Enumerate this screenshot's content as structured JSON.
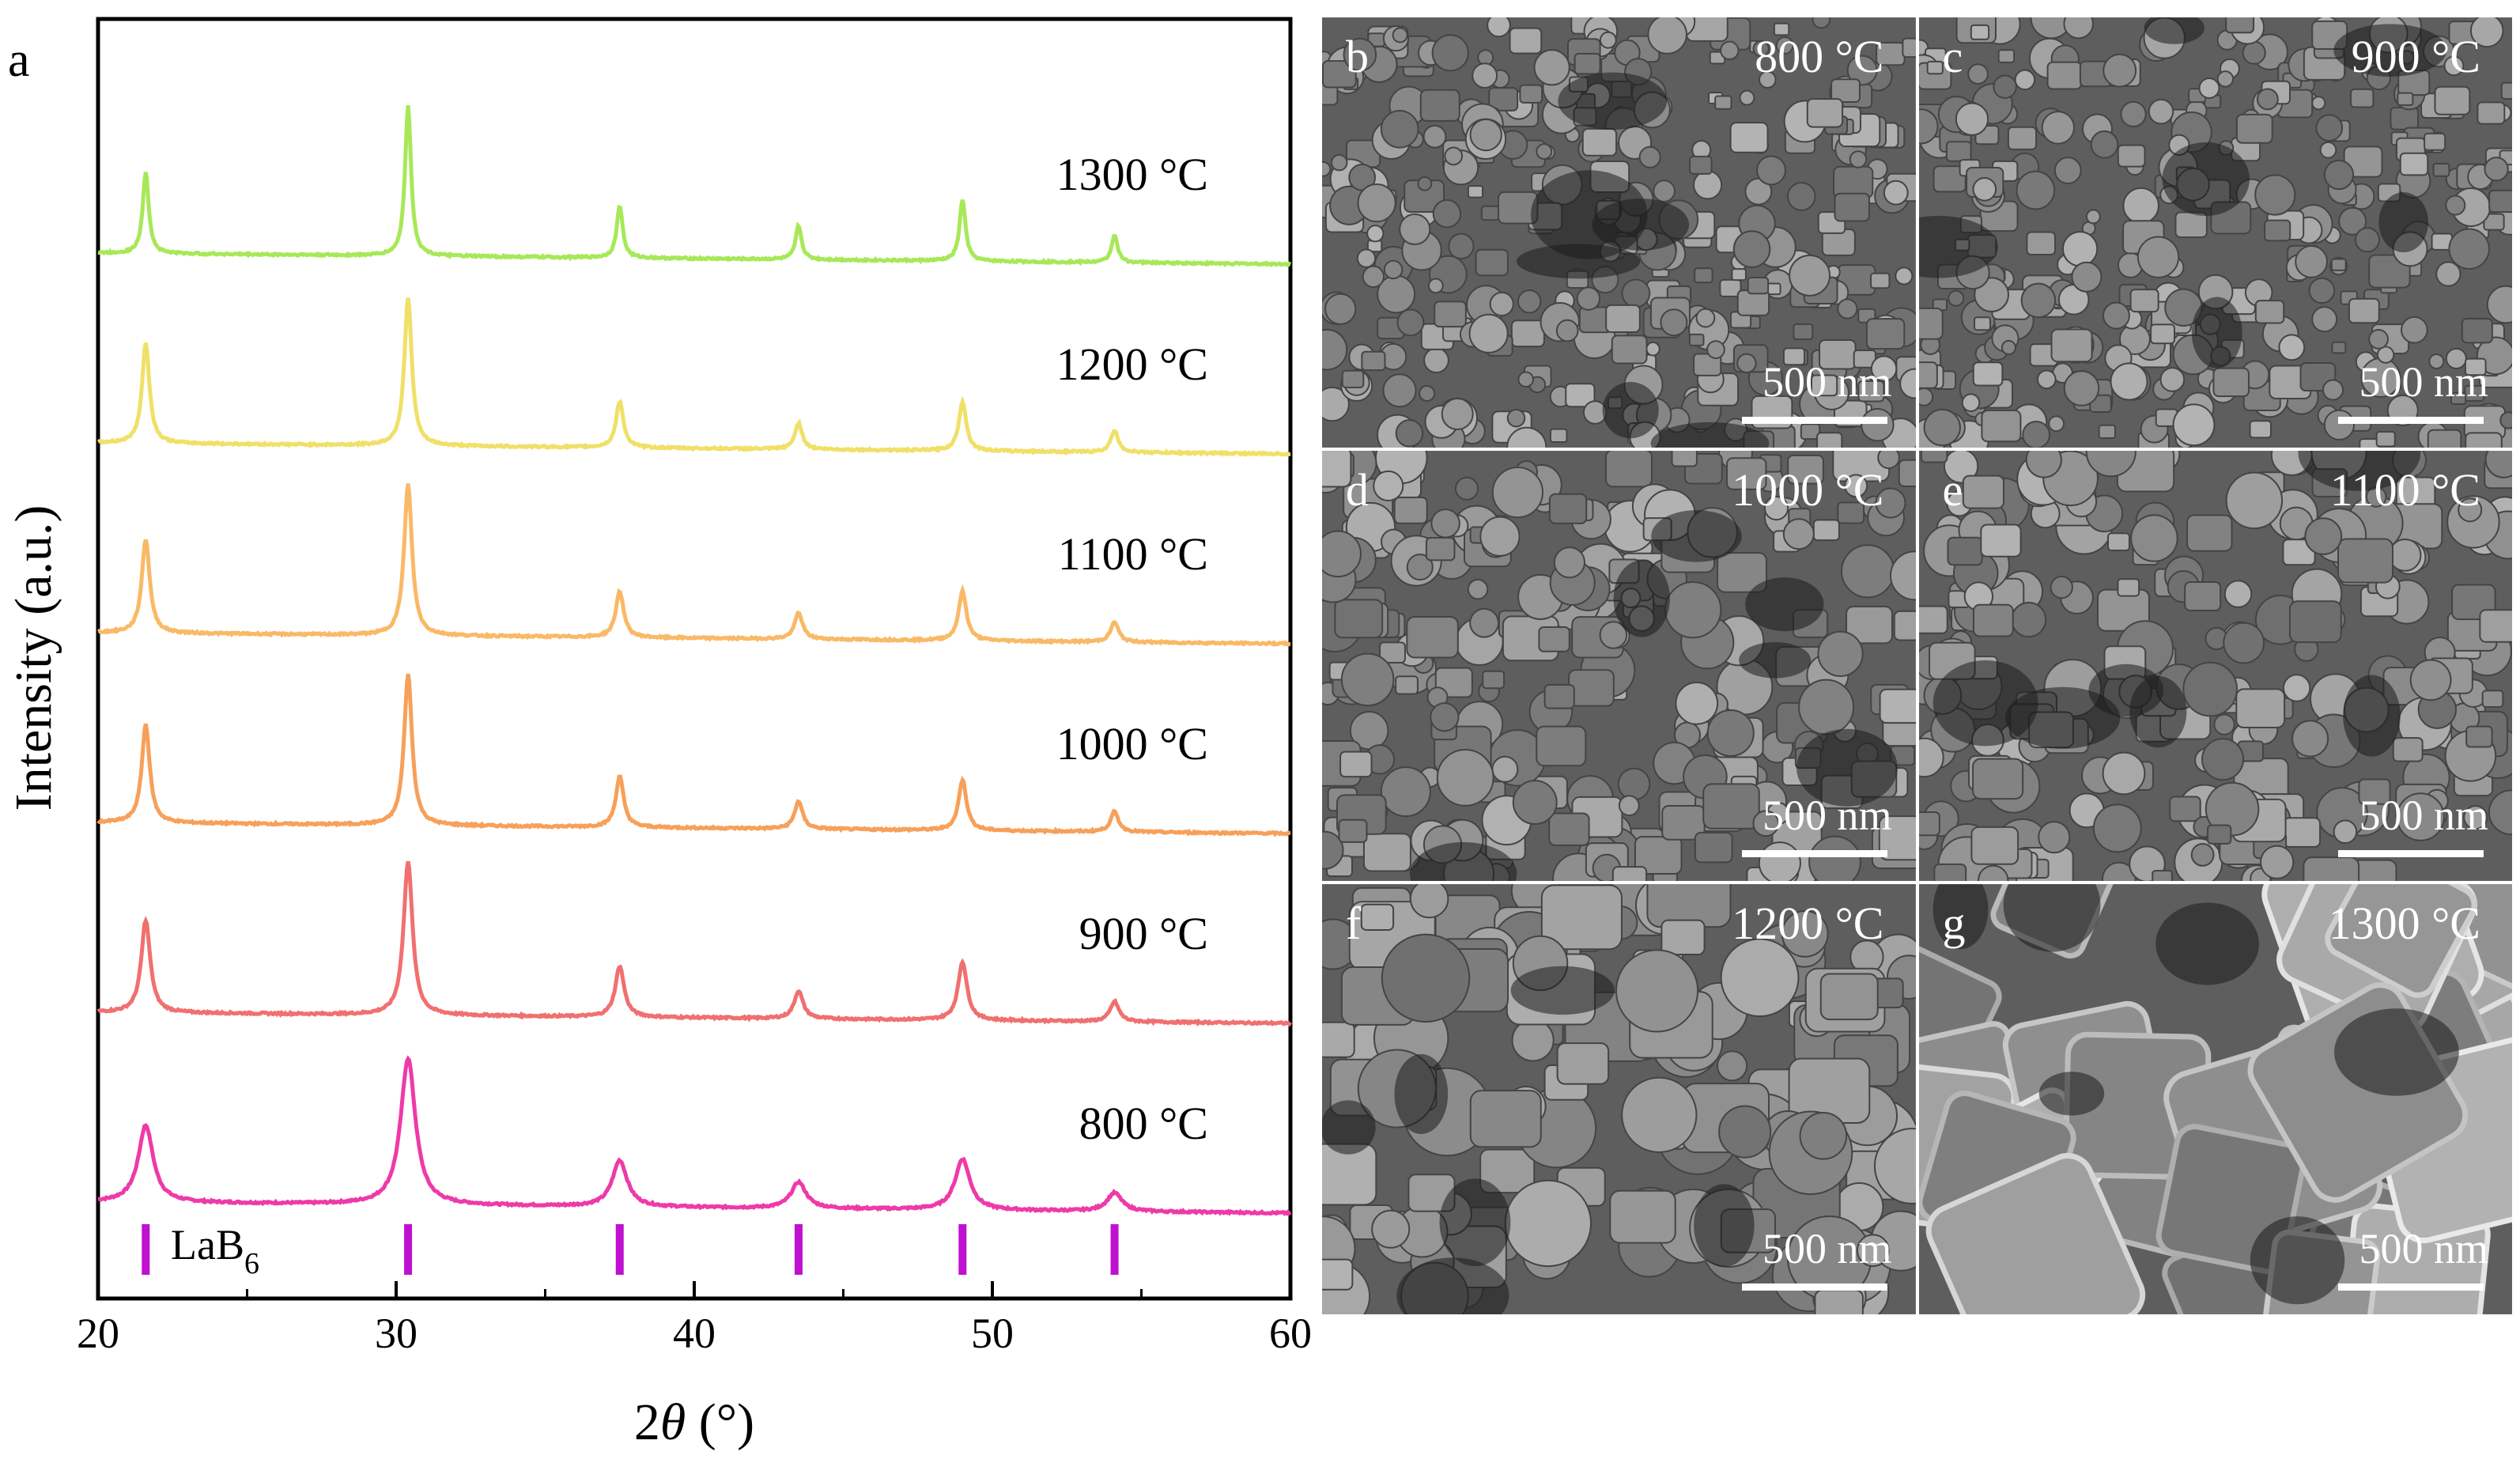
{
  "panel_a": {
    "letter": "a",
    "chart_data": {
      "type": "line",
      "title": "",
      "xlabel_prefix": "2",
      "xlabel_symbol": "θ",
      "xlabel_suffix": " (°)",
      "ylabel": "Intensity (a.u.)",
      "xlim": [
        20,
        60
      ],
      "xticks": [
        20,
        30,
        40,
        50,
        60
      ],
      "reference": {
        "label": "LaB",
        "subscript": "6",
        "color": "#c010d0",
        "positions": [
          21.6,
          30.4,
          37.5,
          43.5,
          49.0,
          54.1
        ]
      },
      "series": [
        {
          "name": "800 °C",
          "color": "#ee3aa8",
          "peak_width": 0.3,
          "peaks": [
            [
              21.6,
              0.5
            ],
            [
              30.4,
              0.95
            ],
            [
              37.5,
              0.3
            ],
            [
              43.5,
              0.17
            ],
            [
              49.0,
              0.33
            ],
            [
              54.1,
              0.12
            ]
          ]
        },
        {
          "name": "900 °C",
          "color": "#f07070",
          "peak_width": 0.18,
          "peaks": [
            [
              21.6,
              0.6
            ],
            [
              30.4,
              1.0
            ],
            [
              37.5,
              0.33
            ],
            [
              43.5,
              0.18
            ],
            [
              49.0,
              0.38
            ],
            [
              54.1,
              0.13
            ]
          ]
        },
        {
          "name": "1000 °C",
          "color": "#f7a05a",
          "peak_width": 0.16,
          "peaks": [
            [
              21.6,
              0.64
            ],
            [
              30.4,
              0.98
            ],
            [
              37.5,
              0.33
            ],
            [
              43.5,
              0.18
            ],
            [
              49.0,
              0.33
            ],
            [
              54.1,
              0.13
            ]
          ]
        },
        {
          "name": "1100 °C",
          "color": "#f9b966",
          "peak_width": 0.16,
          "peaks": [
            [
              21.6,
              0.61
            ],
            [
              30.4,
              0.98
            ],
            [
              37.5,
              0.3
            ],
            [
              43.5,
              0.17
            ],
            [
              49.0,
              0.32
            ],
            [
              54.1,
              0.13
            ]
          ]
        },
        {
          "name": "1200 °C",
          "color": "#f0e068",
          "peak_width": 0.15,
          "peaks": [
            [
              21.6,
              0.65
            ],
            [
              30.4,
              0.96
            ],
            [
              37.5,
              0.3
            ],
            [
              43.5,
              0.17
            ],
            [
              49.0,
              0.32
            ],
            [
              54.1,
              0.14
            ]
          ]
        },
        {
          "name": "1300 °C",
          "color": "#a8e858",
          "peak_width": 0.12,
          "peaks": [
            [
              21.6,
              0.53
            ],
            [
              30.4,
              0.98
            ],
            [
              37.5,
              0.34
            ],
            [
              43.5,
              0.22
            ],
            [
              49.0,
              0.4
            ],
            [
              54.1,
              0.18
            ]
          ]
        }
      ]
    }
  },
  "sem_panels": [
    {
      "letter": "b",
      "temp": "800 °C",
      "scale": "500 nm",
      "texture": "fine"
    },
    {
      "letter": "c",
      "temp": "900 °C",
      "scale": "500 nm",
      "texture": "fine"
    },
    {
      "letter": "d",
      "temp": "1000 °C",
      "scale": "500 nm",
      "texture": "medium"
    },
    {
      "letter": "e",
      "temp": "1100 °C",
      "scale": "500 nm",
      "texture": "medium"
    },
    {
      "letter": "f",
      "temp": "1200 °C",
      "scale": "500 nm",
      "texture": "grains"
    },
    {
      "letter": "g",
      "temp": "1300 °C",
      "scale": "500 nm",
      "texture": "cubes"
    }
  ]
}
